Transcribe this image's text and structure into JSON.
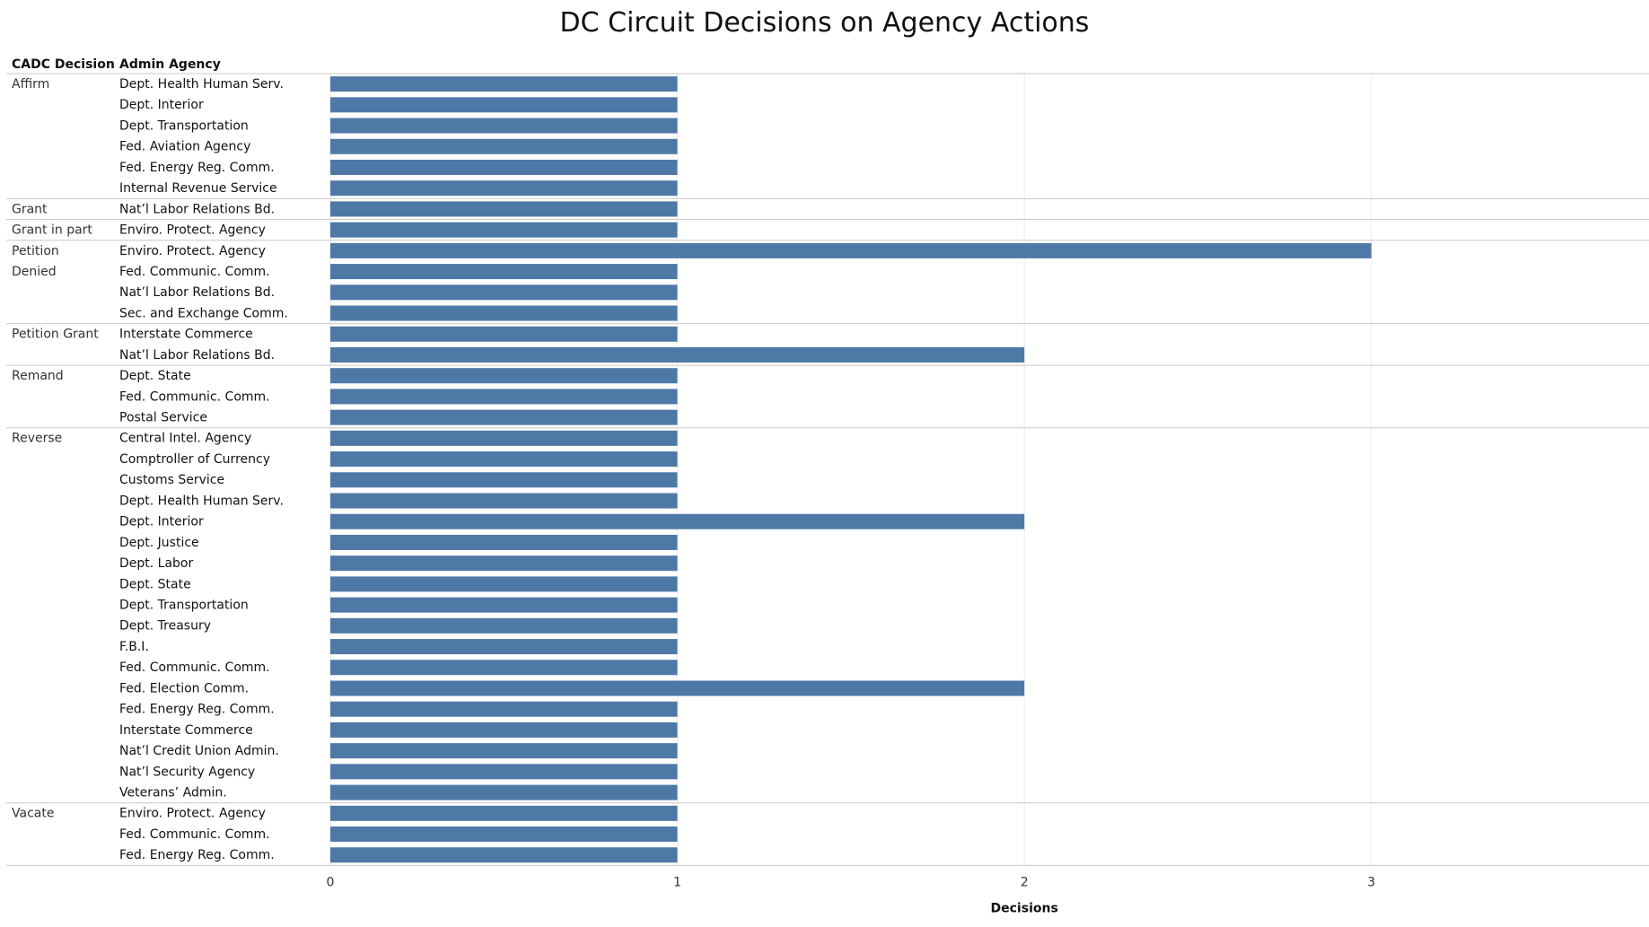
{
  "chart_data": {
    "type": "bar",
    "orientation": "horizontal",
    "title": "DC Circuit Decisions on Agency Actions",
    "row_headers": [
      "CADC Decision",
      "Admin Agency"
    ],
    "xlabel": "Decisions",
    "xlim": [
      0,
      3.8
    ],
    "x_ticks": [
      "0",
      "1",
      "2",
      "3"
    ],
    "bar_color": "#4e79a7",
    "grid": true,
    "groups": [
      {
        "name": "Affirm",
        "rows": [
          {
            "agency": "Dept. Health Human Serv.",
            "value": 1
          },
          {
            "agency": "Dept. Interior",
            "value": 1
          },
          {
            "agency": "Dept. Transportation",
            "value": 1
          },
          {
            "agency": "Fed. Aviation Agency",
            "value": 1
          },
          {
            "agency": "Fed. Energy Reg. Comm.",
            "value": 1
          },
          {
            "agency": "Internal Revenue Service",
            "value": 1
          }
        ]
      },
      {
        "name": "Grant",
        "rows": [
          {
            "agency": "Nat’l Labor Relations Bd.",
            "value": 1
          }
        ]
      },
      {
        "name": "Grant in part",
        "rows": [
          {
            "agency": "Enviro. Protect. Agency",
            "value": 1
          }
        ]
      },
      {
        "name": "Petition Denied",
        "rows": [
          {
            "agency": "Enviro. Protect. Agency",
            "value": 3
          },
          {
            "agency": "Fed. Communic. Comm.",
            "value": 1
          },
          {
            "agency": "Nat’l Labor Relations Bd.",
            "value": 1
          },
          {
            "agency": "Sec. and Exchange Comm.",
            "value": 1
          }
        ]
      },
      {
        "name": "Petition Grant",
        "rows": [
          {
            "agency": "Interstate Commerce",
            "value": 1
          },
          {
            "agency": "Nat’l Labor Relations Bd.",
            "value": 2
          }
        ]
      },
      {
        "name": "Remand",
        "rows": [
          {
            "agency": "Dept. State",
            "value": 1
          },
          {
            "agency": "Fed. Communic. Comm.",
            "value": 1
          },
          {
            "agency": "Postal Service",
            "value": 1
          }
        ]
      },
      {
        "name": "Reverse",
        "rows": [
          {
            "agency": "Central Intel. Agency",
            "value": 1
          },
          {
            "agency": "Comptroller of Currency",
            "value": 1
          },
          {
            "agency": "Customs Service",
            "value": 1
          },
          {
            "agency": "Dept. Health Human Serv.",
            "value": 1
          },
          {
            "agency": "Dept. Interior",
            "value": 2
          },
          {
            "agency": "Dept. Justice",
            "value": 1
          },
          {
            "agency": "Dept.  Labor",
            "value": 1
          },
          {
            "agency": "Dept. State",
            "value": 1
          },
          {
            "agency": "Dept. Transportation",
            "value": 1
          },
          {
            "agency": "Dept. Treasury",
            "value": 1
          },
          {
            "agency": "F.B.I.",
            "value": 1
          },
          {
            "agency": "Fed. Communic. Comm.",
            "value": 1
          },
          {
            "agency": "Fed. Election Comm.",
            "value": 2
          },
          {
            "agency": "Fed. Energy Reg. Comm.",
            "value": 1
          },
          {
            "agency": "Interstate Commerce",
            "value": 1
          },
          {
            "agency": "Nat’l Credit Union Admin.",
            "value": 1
          },
          {
            "agency": "Nat’l Security Agency",
            "value": 1
          },
          {
            "agency": "Veterans’ Admin.",
            "value": 1
          }
        ]
      },
      {
        "name": "Vacate",
        "rows": [
          {
            "agency": "Enviro. Protect. Agency",
            "value": 1
          },
          {
            "agency": "Fed. Communic. Comm.",
            "value": 1
          },
          {
            "agency": "Fed. Energy Reg. Comm.",
            "value": 1
          }
        ]
      }
    ]
  }
}
